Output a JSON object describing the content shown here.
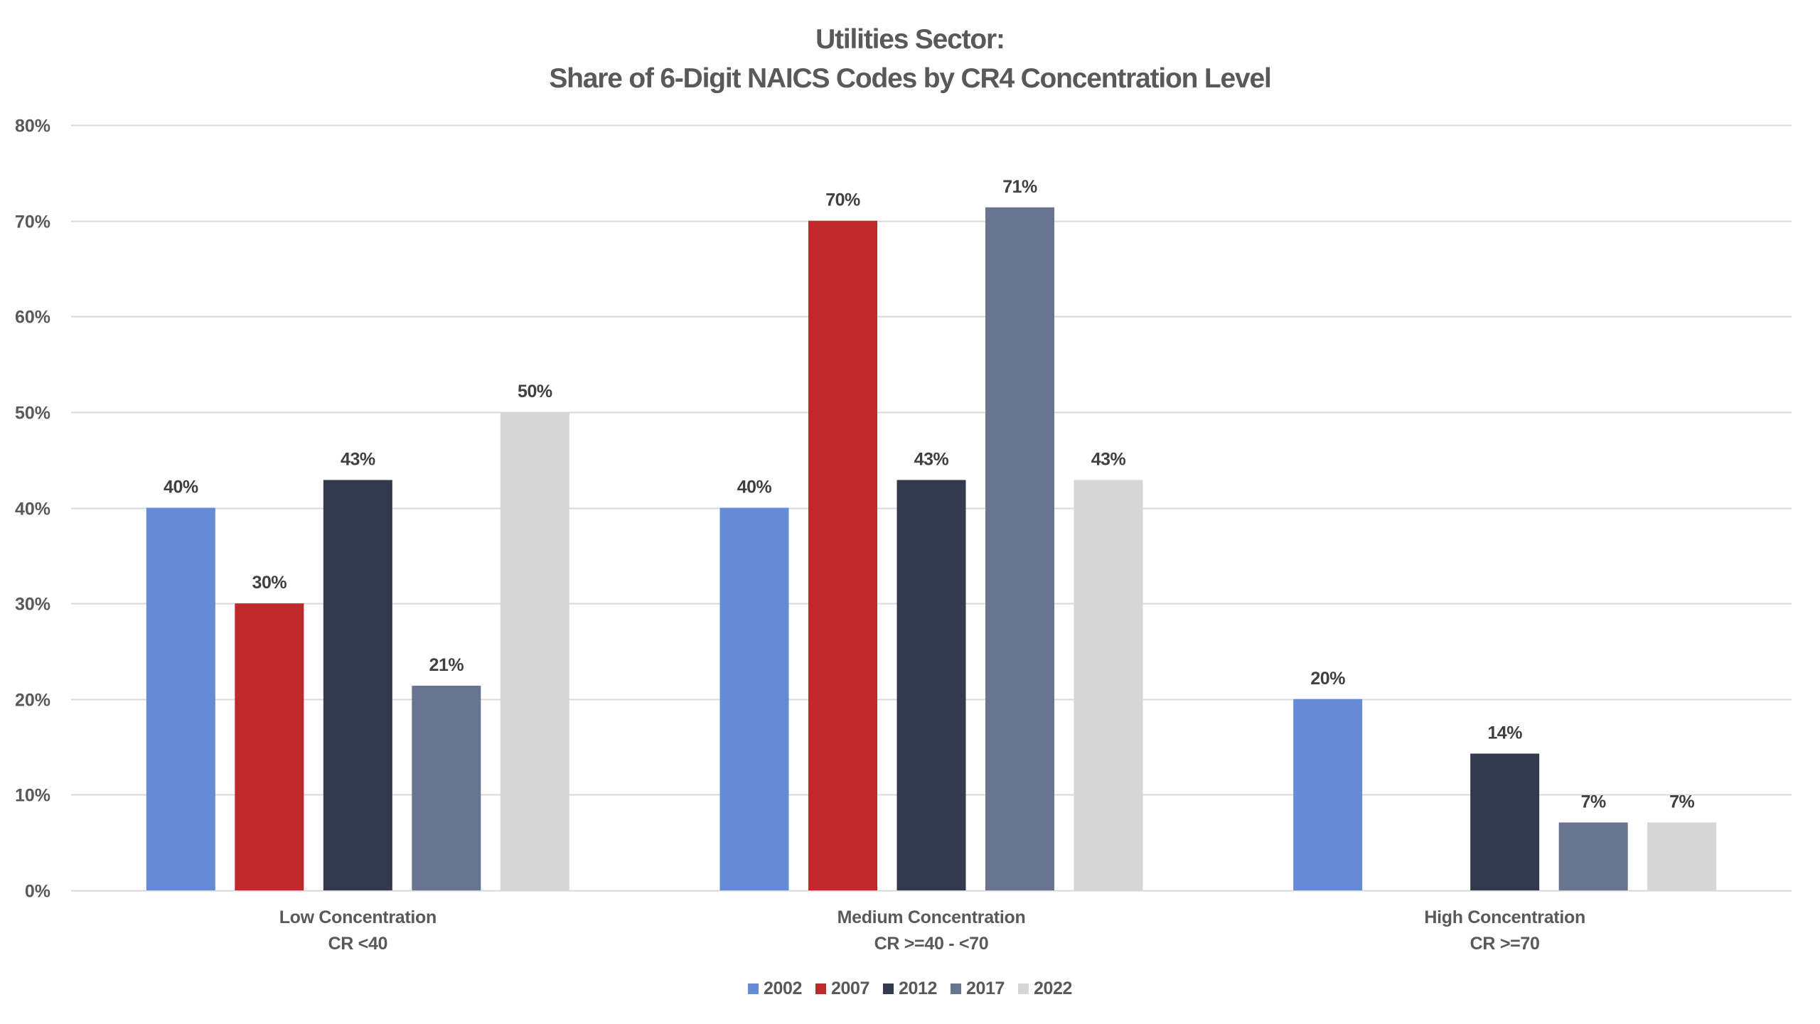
{
  "chart_data": {
    "type": "bar",
    "title": "Utilities Sector:",
    "subtitle": "Share of 6-Digit NAICS Codes by CR4 Concentration Level",
    "xlabel": "",
    "ylabel": "",
    "ylim": [
      0,
      80
    ],
    "yticks": [
      0,
      10,
      20,
      30,
      40,
      50,
      60,
      70,
      80
    ],
    "ytick_labels": [
      "0%",
      "10%",
      "20%",
      "30%",
      "40%",
      "50%",
      "60%",
      "70%",
      "80%"
    ],
    "grid": true,
    "legend_position": "bottom",
    "categories": [
      {
        "line1": "Low Concentration",
        "line2": "CR <40"
      },
      {
        "line1": "Medium Concentration",
        "line2": "CR >=40 - <70"
      },
      {
        "line1": "High Concentration",
        "line2": "CR >=70"
      }
    ],
    "series": [
      {
        "name": "2002",
        "color": "#668BD6",
        "values": [
          40.0,
          40.0,
          20.0
        ],
        "labels": [
          "40%",
          "40%",
          "20%"
        ]
      },
      {
        "name": "2007",
        "color": "#C0292B",
        "values": [
          30.0,
          70.0,
          0
        ],
        "labels": [
          "30%",
          "70%",
          ""
        ]
      },
      {
        "name": "2012",
        "color": "#333A4D",
        "values": [
          42.9,
          42.9,
          14.3
        ],
        "labels": [
          "43%",
          "43%",
          "14%"
        ]
      },
      {
        "name": "2017",
        "color": "#69758F",
        "values": [
          21.4,
          71.4,
          7.1
        ],
        "labels": [
          "21%",
          "71%",
          "7%"
        ]
      },
      {
        "name": "2022",
        "color": "#D6D6D6",
        "values": [
          50.0,
          42.9,
          7.1
        ],
        "labels": [
          "50%",
          "43%",
          "7%"
        ]
      }
    ]
  }
}
